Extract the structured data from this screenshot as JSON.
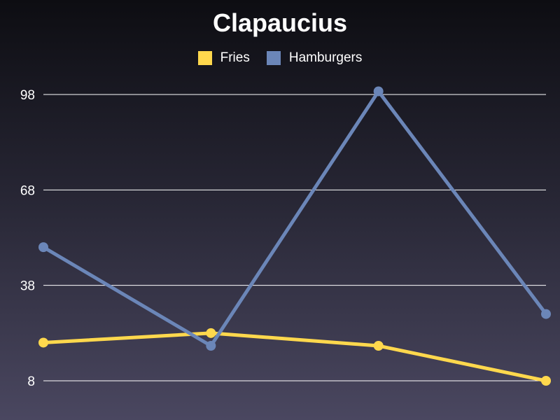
{
  "chart_data": {
    "type": "line",
    "title": "Clapaucius",
    "xlabel": "",
    "ylabel": "",
    "categories": [
      "",
      "",
      "",
      ""
    ],
    "ylim": [
      8,
      98
    ],
    "yticks": [
      98,
      68,
      38,
      8
    ],
    "grid": true,
    "legend_position": "top-center",
    "series": [
      {
        "name": "Fries",
        "color": "#ffd84d",
        "values": [
          20,
          23,
          19,
          8
        ]
      },
      {
        "name": "Hamburgers",
        "color": "#6b86b8",
        "values": [
          50,
          19,
          99,
          29
        ]
      }
    ]
  }
}
